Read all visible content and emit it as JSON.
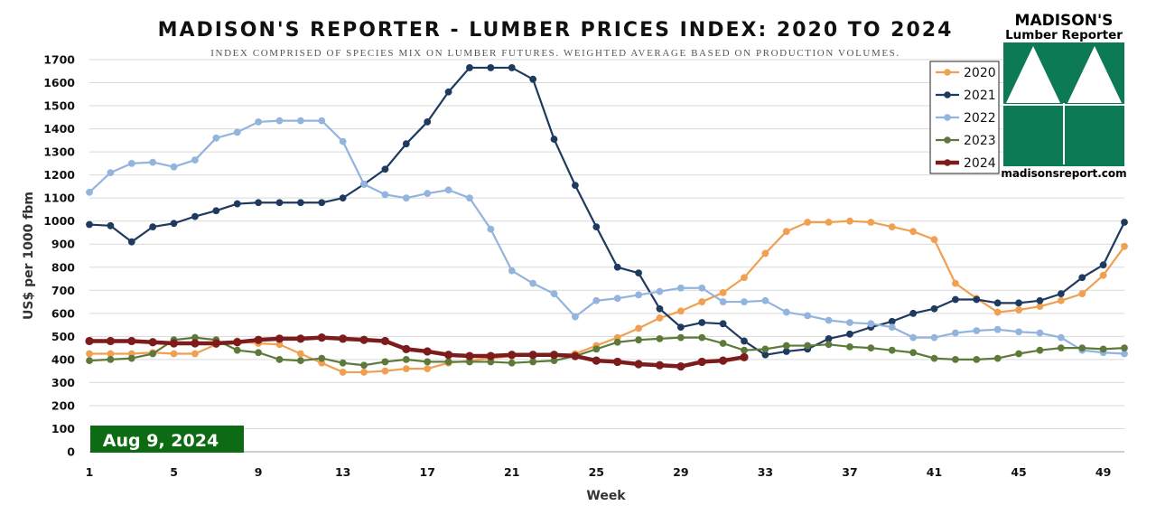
{
  "header": {
    "title": "MADISON'S REPORTER - LUMBER PRICES INDEX: 2020 TO 2024",
    "subtitle": "INDEX COMPRISED OF SPECIES MIX ON LUMBER FUTURES. WEIGHTED AVERAGE BASED ON PRODUCTION VOLUMES."
  },
  "logo": {
    "name": "MADISON'S",
    "tagline": "Lumber Reporter",
    "url": "madisonsreport.com",
    "color": "#0b7a55"
  },
  "date_badge": {
    "text": "Aug 9, 2024",
    "color": "#0d6b14"
  },
  "chart_data": {
    "type": "line",
    "title": "MADISON'S REPORTER - LUMBER PRICES INDEX: 2020 TO 2024",
    "xlabel": "Week",
    "ylabel": "US$ per 1000 fbm",
    "xlim": [
      1,
      50
    ],
    "ylim": [
      0,
      1700
    ],
    "x_ticks": [
      "1",
      "5",
      "9",
      "13",
      "17",
      "21",
      "25",
      "29",
      "33",
      "37",
      "41",
      "45",
      "49"
    ],
    "y_ticks": [
      "0",
      "100",
      "200",
      "300",
      "400",
      "500",
      "600",
      "700",
      "800",
      "900",
      "1000",
      "1100",
      "1200",
      "1300",
      "1400",
      "1500",
      "1600",
      "1700"
    ],
    "grid": "horizontal",
    "legend_position": "top-right",
    "series": [
      {
        "name": "2020",
        "color": "#f0a050",
        "values": [
          425,
          425,
          425,
          430,
          425,
          425,
          465,
          480,
          470,
          465,
          425,
          385,
          345,
          345,
          350,
          360,
          360,
          385,
          395,
          405,
          415,
          415,
          420,
          425,
          460,
          495,
          535,
          580,
          610,
          650,
          690,
          755,
          860,
          955,
          995,
          995,
          1000,
          995,
          975,
          955,
          920,
          730,
          665,
          605,
          615,
          630,
          655,
          685,
          765,
          890
        ]
      },
      {
        "name": "2021",
        "color": "#1f3a5f",
        "values": [
          985,
          980,
          910,
          975,
          990,
          1020,
          1045,
          1075,
          1080,
          1080,
          1080,
          1080,
          1100,
          1160,
          1225,
          1335,
          1430,
          1560,
          1665,
          1665,
          1665,
          1615,
          1355,
          1155,
          975,
          800,
          775,
          620,
          540,
          560,
          555,
          480,
          420,
          435,
          445,
          490,
          510,
          540,
          565,
          600,
          620,
          660,
          660,
          645,
          645,
          655,
          685,
          755,
          810,
          995
        ]
      },
      {
        "name": "2022",
        "color": "#92b4dd",
        "values": [
          1125,
          1210,
          1250,
          1255,
          1235,
          1265,
          1360,
          1385,
          1430,
          1435,
          1435,
          1435,
          1345,
          1160,
          1115,
          1100,
          1120,
          1135,
          1100,
          965,
          785,
          730,
          685,
          585,
          655,
          665,
          680,
          695,
          710,
          710,
          650,
          650,
          655,
          605,
          590,
          570,
          560,
          555,
          540,
          495,
          495,
          515,
          525,
          530,
          520,
          515,
          495,
          440,
          430,
          425
        ]
      },
      {
        "name": "2023",
        "color": "#5d7a3a",
        "values": [
          395,
          400,
          405,
          425,
          485,
          495,
          485,
          440,
          430,
          400,
          395,
          405,
          385,
          375,
          390,
          400,
          390,
          390,
          390,
          390,
          385,
          390,
          395,
          415,
          445,
          475,
          485,
          490,
          495,
          495,
          470,
          440,
          445,
          460,
          460,
          465,
          455,
          450,
          440,
          430,
          405,
          400,
          400,
          405,
          425,
          440,
          450,
          450,
          445,
          450
        ]
      },
      {
        "name": "2024",
        "color": "#7c1c1c",
        "values": [
          480,
          480,
          480,
          475,
          470,
          470,
          470,
          475,
          485,
          490,
          490,
          495,
          490,
          485,
          480,
          445,
          435,
          420,
          415,
          415,
          420,
          420,
          420,
          415,
          395,
          390,
          380,
          375,
          370,
          390,
          395,
          410
        ]
      }
    ]
  }
}
